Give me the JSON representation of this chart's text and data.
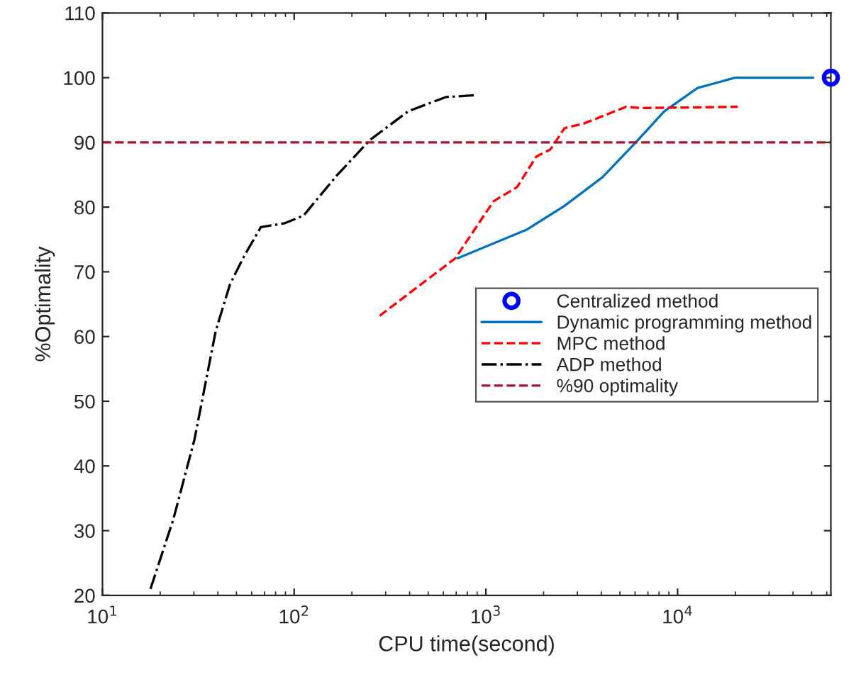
{
  "chart_data": {
    "type": "line",
    "xlabel": "CPU time(second)",
    "ylabel": "%Optimality",
    "log": "x",
    "xlim": [
      10,
      63000
    ],
    "xticks": [
      {
        "value": 10,
        "label": "10$^{1}$"
      },
      {
        "value": 100,
        "label": "10$^{2}$"
      },
      {
        "value": 1000,
        "label": "10$^{3}$"
      },
      {
        "value": 10000,
        "label": "10$^{4}$"
      }
    ],
    "ylim": [
      20,
      110
    ],
    "yticks": [
      20,
      30,
      40,
      50,
      60,
      70,
      80,
      90,
      100,
      110
    ],
    "grid": false,
    "legend": "right",
    "series": [
      {
        "name": "Centralized method",
        "type": "scatter",
        "marker": "circle",
        "color": "#0000ff",
        "x": [
          63000
        ],
        "values": [
          100
        ]
      },
      {
        "name": "Dynamic programming method",
        "line_style": "solid",
        "color": "#0072bd",
        "x": [
          713,
          1630,
          2570,
          4050,
          6050,
          8510,
          12700,
          19900,
          51000
        ],
        "values": [
          72.1,
          76.5,
          80.2,
          84.6,
          90.0,
          94.8,
          98.4,
          100,
          100
        ]
      },
      {
        "name": "MPC method",
        "line_style": "dashed",
        "color": "#ff0000",
        "x": [
          279,
          693,
          1096,
          1456,
          1830,
          2170,
          2570,
          3230,
          5390,
          6400,
          20600
        ],
        "values": [
          63.2,
          72.1,
          80.9,
          83.1,
          87.8,
          88.9,
          92.2,
          92.9,
          95.5,
          95.3,
          95.5
        ]
      },
      {
        "name": "ADP method",
        "line_style": "dashdot",
        "color": "#000000",
        "x": [
          17.8,
          23.4,
          30.2,
          39,
          46.3,
          55,
          67,
          89,
          112,
          167,
          249,
          393,
          617,
          895
        ],
        "values": [
          21,
          31.7,
          44.1,
          60.9,
          68.1,
          72.5,
          76.9,
          77.5,
          78.7,
          84.9,
          90.4,
          94.8,
          97.0,
          97.3
        ]
      }
    ],
    "ref_lines": [
      {
        "axis": "y",
        "value": 90,
        "label": "%90 optimality",
        "color": "#a2142f",
        "line_style": "dashed"
      }
    ]
  }
}
